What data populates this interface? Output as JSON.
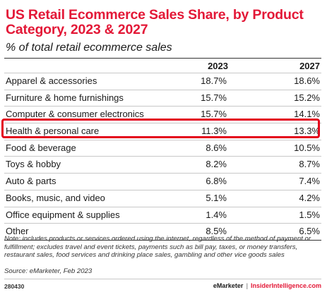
{
  "chart_data": {
    "type": "table",
    "title": "US Retail Ecommerce Sales Share, by Product Category, 2023 & 2027",
    "subtitle": "% of total retail ecommerce sales",
    "columns": [
      "2023",
      "2027"
    ],
    "rows": [
      {
        "category": "Apparel & accessories",
        "y2023": "18.7%",
        "y2027": "18.6%"
      },
      {
        "category": "Furniture & home furnishings",
        "y2023": "15.7%",
        "y2027": "15.2%"
      },
      {
        "category": "Computer & consumer electronics",
        "y2023": "15.7%",
        "y2027": "14.1%"
      },
      {
        "category": "Health & personal care",
        "y2023": "11.3%",
        "y2027": "13.3%"
      },
      {
        "category": "Food & beverage",
        "y2023": "8.6%",
        "y2027": "10.5%"
      },
      {
        "category": "Toys & hobby",
        "y2023": "8.2%",
        "y2027": "8.7%"
      },
      {
        "category": "Auto & parts",
        "y2023": "6.8%",
        "y2027": "7.4%"
      },
      {
        "category": "Books, music, and video",
        "y2023": "5.1%",
        "y2027": "4.2%"
      },
      {
        "category": "Office equipment & supplies",
        "y2023": "1.4%",
        "y2027": "1.5%"
      },
      {
        "category": "Other",
        "y2023": "8.5%",
        "y2027": "6.5%"
      }
    ],
    "highlighted_category": "Health & personal care",
    "highlight_color": "#e3001b"
  },
  "note": "Note: includes products or services ordered using the internet, regardless of the method of payment or fulfillment; excludes travel and event tickets, payments such as bill pay, taxes, or money transfers, restaurant sales, food services and drinking place sales, gambling and other vice goods sales",
  "source": "Source: eMarketer, Feb 2023",
  "chart_id": "280430",
  "brand": {
    "name": "eMarketer",
    "separator": "|",
    "site": "InsiderIntelligence.com"
  },
  "colors": {
    "title": "#e31837",
    "text": "#1a1a1a"
  }
}
